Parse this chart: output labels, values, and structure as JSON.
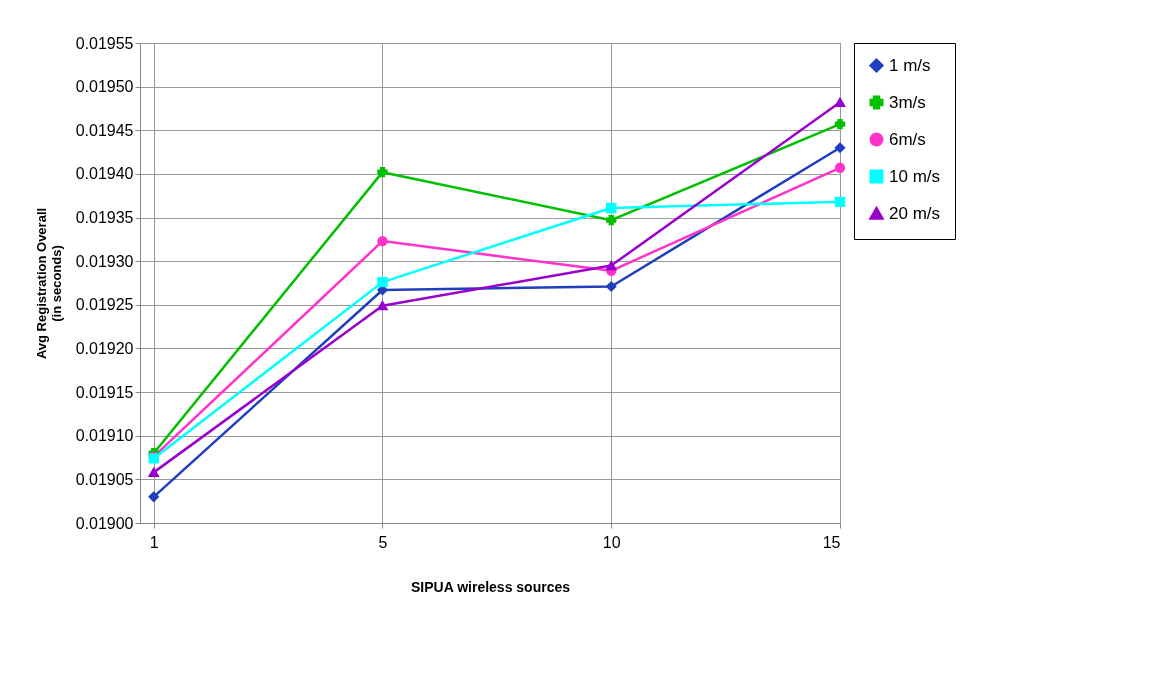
{
  "chart_data": {
    "type": "line",
    "xlabel": "SIPUA wireless sources",
    "ylabel": "Avg Registration Overall\n(in seconds)",
    "categories": [
      "1",
      "5",
      "10",
      "15"
    ],
    "series": [
      {
        "name": "1 m/s",
        "color": "#1f3fbf",
        "marker": "diamond",
        "values": [
          0.01903,
          0.019267,
          0.019271,
          0.01943
        ]
      },
      {
        "name": "3m/s",
        "color": "#00c000",
        "marker": "cross",
        "values": [
          0.01908,
          0.019402,
          0.019347,
          0.019457
        ]
      },
      {
        "name": "6m/s",
        "color": "#ff33cc",
        "marker": "circle",
        "values": [
          0.019076,
          0.019323,
          0.019289,
          0.019407
        ]
      },
      {
        "name": "10 m/s",
        "color": "#00ffff",
        "marker": "square",
        "values": [
          0.019074,
          0.019276,
          0.019361,
          0.019368
        ]
      },
      {
        "name": "20 m/s",
        "color": "#9900cc",
        "marker": "triangle",
        "values": [
          0.019058,
          0.019249,
          0.019295,
          0.019482
        ]
      }
    ],
    "ylim": [
      0.019,
      0.01955
    ],
    "yticks": [
      {
        "value": 0.019,
        "label": "0.01900"
      },
      0.01905,
      {
        "value": 0.0191,
        "label": "0.01910"
      },
      0.01915,
      {
        "value": 0.0192,
        "label": "0.01920"
      },
      0.01925,
      {
        "value": 0.0193,
        "label": "0.01930"
      },
      0.01935,
      {
        "value": 0.0194,
        "label": "0.01940"
      },
      0.01945,
      {
        "value": 0.0195,
        "label": "0.01950"
      },
      0.01955
    ],
    "grid": true,
    "legend": "right",
    "line_style": "solid"
  }
}
